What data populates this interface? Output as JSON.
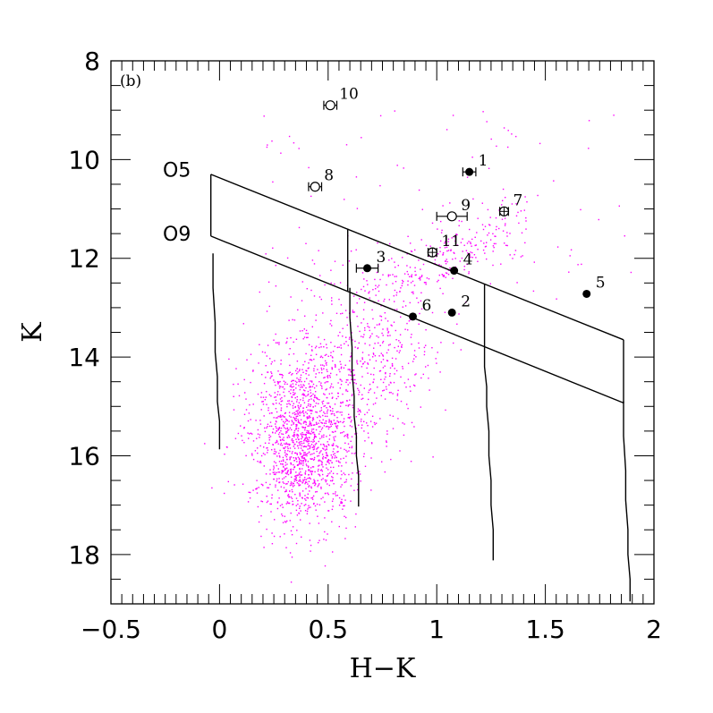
{
  "chart_data": {
    "type": "scatter",
    "panel_label": "(b)",
    "xlabel": "H−K",
    "ylabel": "K",
    "xlim": [
      -0.5,
      2.0
    ],
    "ylim": [
      19.0,
      8.0
    ],
    "y_inverted": true,
    "grid": false,
    "xticks": [
      {
        "value": -0.5,
        "label": "−0.5"
      },
      {
        "value": 0,
        "label": "0"
      },
      {
        "value": 0.5,
        "label": "0.5"
      },
      {
        "value": 1,
        "label": "1"
      },
      {
        "value": 1.5,
        "label": "1.5"
      },
      {
        "value": 2,
        "label": "2"
      }
    ],
    "yticks": [
      {
        "value": 8,
        "label": "8"
      },
      {
        "value": 10,
        "label": "10"
      },
      {
        "value": 12,
        "label": "12"
      },
      {
        "value": 14,
        "label": "14"
      },
      {
        "value": 16,
        "label": "16"
      },
      {
        "value": 18,
        "label": "18"
      }
    ],
    "colors": {
      "field_points": "#ff00ff",
      "lines": "#000000",
      "markers": "#000000"
    },
    "reddening_band": {
      "upper": {
        "label": "O5",
        "x": [
          -0.04,
          1.86
        ],
        "y": [
          10.3,
          13.65
        ]
      },
      "lower": {
        "label": "O9",
        "x": [
          -0.04,
          1.86
        ],
        "y": [
          11.55,
          14.93
        ]
      },
      "verticals": [
        {
          "x": [
            -0.04,
            -0.04
          ],
          "y": [
            10.3,
            11.55
          ]
        },
        {
          "x": [
            0.59,
            0.59
          ],
          "y": [
            11.4,
            12.66
          ]
        },
        {
          "x": [
            1.22,
            1.22
          ],
          "y": [
            12.53,
            13.79
          ]
        },
        {
          "x": [
            1.86,
            1.86
          ],
          "y": [
            13.65,
            14.93
          ]
        }
      ]
    },
    "isochrones": [
      {
        "x": [
          -0.03,
          -0.03,
          -0.02,
          -0.02,
          -0.01,
          -0.01,
          0.0,
          0.0,
          0.0
        ],
        "y": [
          11.9,
          12.6,
          13.3,
          13.9,
          14.4,
          14.9,
          15.3,
          15.6,
          15.87
        ]
      },
      {
        "x": [
          0.6,
          0.6,
          0.61,
          0.61,
          0.62,
          0.62,
          0.63,
          0.63,
          0.64,
          0.64,
          0.64
        ],
        "y": [
          12.6,
          13.2,
          13.8,
          14.3,
          14.8,
          15.2,
          15.6,
          16.0,
          16.4,
          16.8,
          17.03
        ]
      },
      {
        "x": [
          1.22,
          1.22,
          1.23,
          1.23,
          1.24,
          1.24,
          1.25,
          1.25,
          1.26,
          1.26,
          1.26
        ],
        "y": [
          13.8,
          14.2,
          14.6,
          15.0,
          15.5,
          16.0,
          16.5,
          17.0,
          17.5,
          17.9,
          18.12
        ]
      },
      {
        "x": [
          1.86,
          1.86,
          1.87,
          1.87,
          1.88,
          1.88,
          1.89,
          1.89
        ],
        "y": [
          14.9,
          15.6,
          16.3,
          16.9,
          17.5,
          18.0,
          18.5,
          18.95
        ]
      }
    ],
    "stars": [
      {
        "id": "1",
        "hk": 1.15,
        "k": 10.25,
        "marker": "filled",
        "xerr": 0.03
      },
      {
        "id": "2",
        "hk": 1.07,
        "k": 13.1,
        "marker": "filled",
        "xerr": 0
      },
      {
        "id": "3",
        "hk": 0.68,
        "k": 12.2,
        "marker": "filled",
        "xerr": 0.05
      },
      {
        "id": "4",
        "hk": 1.08,
        "k": 12.25,
        "marker": "filled",
        "xerr": 0
      },
      {
        "id": "5",
        "hk": 1.69,
        "k": 12.72,
        "marker": "filled",
        "xerr": 0
      },
      {
        "id": "6",
        "hk": 0.89,
        "k": 13.18,
        "marker": "filled",
        "xerr": 0
      },
      {
        "id": "7",
        "hk": 1.31,
        "k": 11.05,
        "marker": "crossed",
        "xerr": 0.02
      },
      {
        "id": "8",
        "hk": 0.44,
        "k": 10.55,
        "marker": "open",
        "xerr": 0.03
      },
      {
        "id": "9",
        "hk": 1.07,
        "k": 11.15,
        "marker": "open",
        "xerr": 0.07
      },
      {
        "id": "10",
        "hk": 0.51,
        "k": 8.9,
        "marker": "open",
        "xerr": 0.03
      },
      {
        "id": "11",
        "hk": 0.98,
        "k": 11.88,
        "marker": "crossed",
        "xerr": 0.02
      }
    ]
  }
}
